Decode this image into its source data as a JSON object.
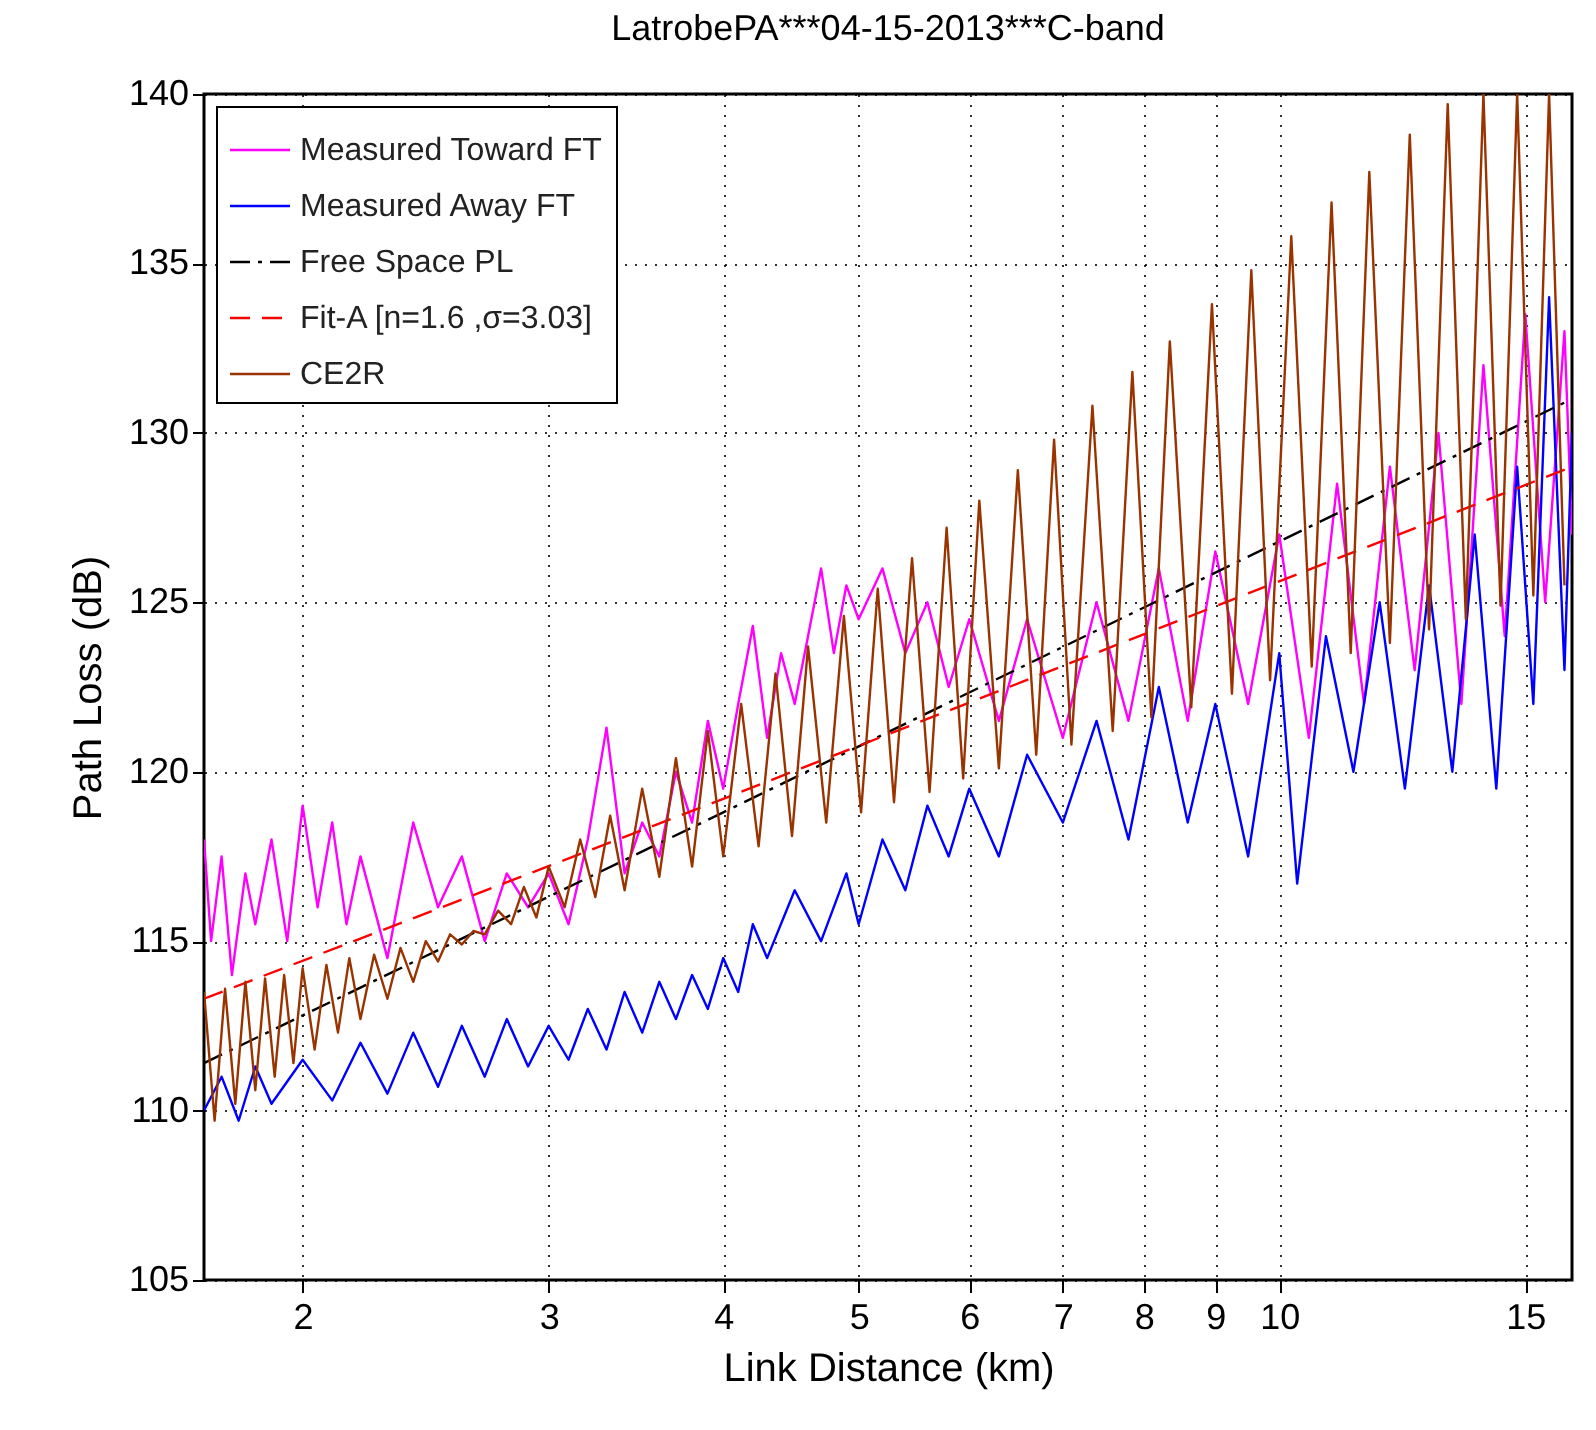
{
  "chart_data": {
    "type": "line",
    "title": "LatrobePA***04-15-2013***C-band",
    "xlabel": "Link Distance (km)",
    "ylabel": "Path Loss (dB)",
    "log": "x",
    "grid": true,
    "legend": "top left",
    "xlim": [
      1.7,
      16.2
    ],
    "xticks": [
      2,
      3,
      4,
      5,
      6,
      7,
      8,
      9,
      10,
      15
    ],
    "ylim": [
      105,
      140
    ],
    "yticks": [
      105,
      110,
      115,
      120,
      125,
      130,
      135,
      140
    ],
    "series": [
      {
        "name": "Measured Toward FT",
        "color": "#ff00ff",
        "line_style": "solid",
        "x": [
          1.7,
          1.72,
          1.75,
          1.78,
          1.82,
          1.85,
          1.9,
          1.95,
          2.0,
          2.05,
          2.1,
          2.15,
          2.2,
          2.3,
          2.4,
          2.5,
          2.6,
          2.7,
          2.8,
          2.9,
          3.0,
          3.1,
          3.2,
          3.3,
          3.4,
          3.5,
          3.6,
          3.7,
          3.8,
          3.9,
          4.0,
          4.1,
          4.2,
          4.3,
          4.4,
          4.5,
          4.6,
          4.7,
          4.8,
          4.9,
          5.0,
          5.2,
          5.4,
          5.6,
          5.8,
          6.0,
          6.3,
          6.6,
          7.0,
          7.4,
          7.8,
          8.2,
          8.6,
          9.0,
          9.5,
          10.0,
          10.5,
          11.0,
          11.5,
          12.0,
          12.5,
          13.0,
          13.5,
          14.0,
          14.5,
          15.0,
          15.5,
          16.0,
          16.2
        ],
        "values": [
          118,
          115,
          117.5,
          114,
          117,
          115.5,
          118,
          115,
          119,
          116,
          118.5,
          115.5,
          117.5,
          114.5,
          118.5,
          116,
          117.5,
          115,
          117,
          116,
          117,
          115.5,
          118,
          121.3,
          117,
          118.5,
          117.5,
          120,
          118.5,
          121.5,
          119.5,
          122,
          124.3,
          121,
          123.5,
          122,
          124,
          126,
          123.5,
          125.5,
          124.5,
          126,
          123.5,
          125,
          122.5,
          124.5,
          121.5,
          124.5,
          121,
          125,
          121.5,
          126,
          121.5,
          126.5,
          122,
          127,
          121,
          128.5,
          122,
          129,
          123,
          130,
          122,
          132,
          124,
          133.5,
          125,
          133,
          127
        ]
      },
      {
        "name": "Measured Away FT",
        "color": "#0000ff",
        "line_style": "solid",
        "x": [
          1.7,
          1.75,
          1.8,
          1.85,
          1.9,
          2.0,
          2.1,
          2.2,
          2.3,
          2.4,
          2.5,
          2.6,
          2.7,
          2.8,
          2.9,
          3.0,
          3.1,
          3.2,
          3.3,
          3.4,
          3.5,
          3.6,
          3.7,
          3.8,
          3.9,
          4.0,
          4.1,
          4.2,
          4.3,
          4.5,
          4.7,
          4.9,
          5.0,
          5.2,
          5.4,
          5.6,
          5.8,
          6.0,
          6.3,
          6.6,
          7.0,
          7.4,
          7.8,
          8.2,
          8.6,
          9.0,
          9.5,
          10.0,
          10.3,
          10.8,
          11.3,
          11.8,
          12.3,
          12.8,
          13.3,
          13.8,
          14.3,
          14.8,
          15.2,
          15.6,
          16.0,
          16.2
        ],
        "values": [
          110,
          111,
          109.7,
          111.3,
          110.2,
          111.5,
          110.3,
          112,
          110.5,
          112.3,
          110.7,
          112.5,
          111,
          112.7,
          111.3,
          112.5,
          111.5,
          113,
          111.8,
          113.5,
          112.3,
          113.8,
          112.7,
          114,
          113,
          114.5,
          113.5,
          115.5,
          114.5,
          116.5,
          115,
          117,
          115.5,
          118,
          116.5,
          119,
          117.5,
          119.5,
          117.5,
          120.5,
          118.5,
          121.5,
          118,
          122.5,
          118.5,
          122,
          117.5,
          123.5,
          116.7,
          124,
          120,
          125,
          119.5,
          125.5,
          120,
          127,
          119.5,
          129,
          122,
          134,
          123,
          130
        ]
      },
      {
        "name": "Free Space PL",
        "color": "#000000",
        "line_style": "dashdot",
        "x": [
          1.7,
          4,
          16.2
        ],
        "values": [
          111.4,
          118.8,
          131
        ]
      },
      {
        "name": "Fit-A [n=1.6 ,σ=3.03]",
        "color": "#ff0000",
        "line_style": "dashed",
        "x": [
          1.7,
          4,
          16.2
        ],
        "values": [
          113.3,
          119.2,
          129
        ]
      },
      {
        "name": "CE2R",
        "color": "#993300",
        "line_style": "solid",
        "x": [
          1.7,
          1.73,
          1.76,
          1.79,
          1.82,
          1.85,
          1.88,
          1.91,
          1.94,
          1.97,
          2.0,
          2.04,
          2.08,
          2.12,
          2.16,
          2.2,
          2.25,
          2.3,
          2.35,
          2.4,
          2.45,
          2.5,
          2.55,
          2.6,
          2.65,
          2.7,
          2.76,
          2.82,
          2.88,
          2.94,
          3.0,
          3.08,
          3.16,
          3.24,
          3.32,
          3.4,
          3.5,
          3.6,
          3.7,
          3.8,
          3.9,
          4.0,
          4.12,
          4.24,
          4.36,
          4.48,
          4.6,
          4.74,
          4.88,
          5.02,
          5.16,
          5.3,
          5.46,
          5.62,
          5.78,
          5.94,
          6.1,
          6.3,
          6.5,
          6.7,
          6.9,
          7.1,
          7.35,
          7.6,
          7.85,
          8.1,
          8.35,
          8.65,
          8.95,
          9.25,
          9.55,
          9.85,
          10.2,
          10.55,
          10.9,
          11.25,
          11.6,
          12.0,
          12.4,
          12.8,
          13.2,
          13.6,
          14.0,
          14.4,
          14.8,
          15.2,
          15.6,
          16.0
        ],
        "values": [
          113.5,
          109.7,
          113.6,
          110.2,
          113.8,
          110.6,
          113.9,
          111.0,
          114.0,
          111.4,
          114.2,
          111.8,
          114.3,
          112.3,
          114.5,
          112.7,
          114.6,
          113.3,
          114.8,
          113.8,
          115.0,
          114.4,
          115.2,
          114.9,
          115.3,
          115.2,
          115.9,
          115.5,
          116.6,
          115.7,
          117.2,
          116.0,
          118.0,
          116.3,
          118.7,
          116.5,
          119.5,
          116.9,
          120.4,
          117.2,
          121.2,
          117.5,
          122.0,
          117.8,
          122.9,
          118.1,
          123.7,
          118.5,
          124.6,
          118.8,
          125.4,
          119.1,
          126.3,
          119.4,
          127.2,
          119.8,
          128.0,
          120.1,
          128.9,
          120.5,
          129.8,
          120.8,
          130.8,
          121.2,
          131.8,
          121.6,
          132.7,
          121.9,
          133.8,
          122.3,
          134.8,
          122.7,
          135.8,
          123.1,
          136.8,
          123.5,
          137.7,
          123.8,
          138.8,
          124.2,
          139.7,
          124.5,
          140,
          124.9,
          140,
          125.2,
          140,
          125.5
        ]
      }
    ]
  }
}
